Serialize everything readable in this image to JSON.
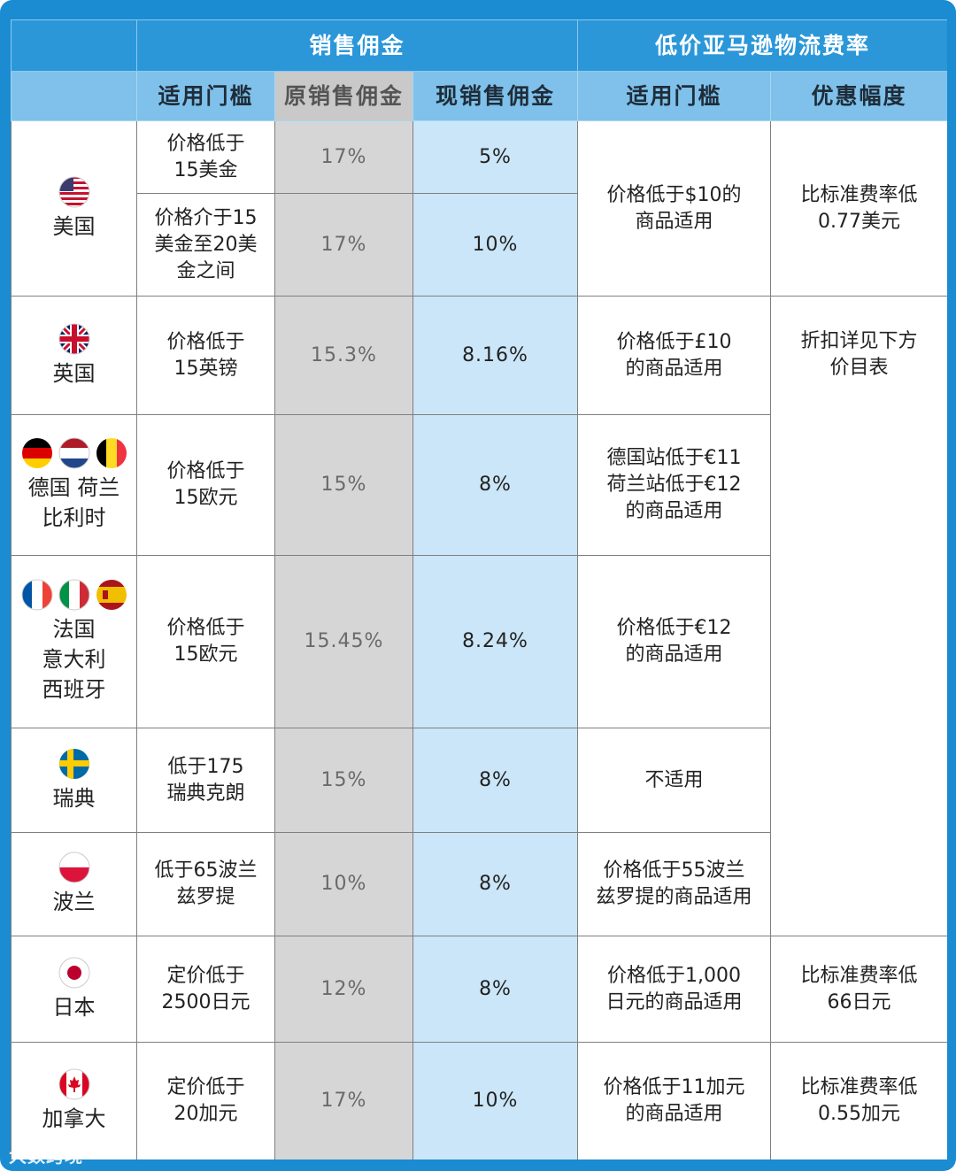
{
  "header": {
    "sales_commission": "销售佣金",
    "low_price_fba_rate": "低价亚马逊物流费率",
    "threshold": "适用门槛",
    "original_commission": "原销售佣金",
    "current_commission": "现销售佣金",
    "fba_threshold": "适用门槛",
    "discount": "优惠幅度"
  },
  "rows": [
    {
      "country": "美国",
      "flag": "us-flag-icon",
      "sub": [
        {
          "threshold": "价格低于\n15美金",
          "original": "17%",
          "current": "5%"
        },
        {
          "threshold": "价格介于15\n美金至20美\n金之间",
          "original": "17%",
          "current": "10%"
        }
      ],
      "fba_threshold": "价格低于$10的\n商品适用",
      "discount": "比标准费率低\n0.77美元"
    },
    {
      "country": "英国",
      "flag": "uk-flag-icon",
      "threshold": "价格低于\n15英镑",
      "original": "15.3%",
      "current": "8.16%",
      "fba_threshold": "价格低于£10\n的商品适用",
      "discount": "折扣详见下方\n价目表"
    },
    {
      "country": "德国 荷兰\n比利时",
      "threshold": "价格低于\n15欧元",
      "original": "15%",
      "current": "8%",
      "fba_threshold": "德国站低于€11\n荷兰站低于€12\n的商品适用"
    },
    {
      "country": "法国\n意大利\n西班牙",
      "threshold": "价格低于\n15欧元",
      "original": "15.45%",
      "current": "8.24%",
      "fba_threshold": "价格低于€12\n的商品适用"
    },
    {
      "country": "瑞典",
      "threshold": "低于175\n瑞典克朗",
      "original": "15%",
      "current": "8%",
      "fba_threshold": "不适用"
    },
    {
      "country": "波兰",
      "threshold": "低于65波兰\n兹罗提",
      "original": "10%",
      "current": "8%",
      "fba_threshold": "价格低于55波兰\n兹罗提的商品适用"
    },
    {
      "country": "日本",
      "threshold": "定价低于\n2500日元",
      "original": "12%",
      "current": "8%",
      "fba_threshold": "价格低于1,000\n日元的商品适用",
      "discount": "比标准费率低\n66日元"
    },
    {
      "country": "加拿大",
      "threshold": "定价低于\n20加元",
      "original": "17%",
      "current": "10%",
      "fba_threshold": "价格低于11加元\n的商品适用",
      "discount": "比标准费率低\n0.55加元"
    }
  ],
  "watermark": "大数跨境",
  "colors": {
    "frame_blue": "#1b8bd2",
    "header_blue": "#2b97d9",
    "subheader_blue": "#7fc1ea",
    "original_gray": "#d6d6d6",
    "current_light_blue": "#cbe6f8"
  }
}
